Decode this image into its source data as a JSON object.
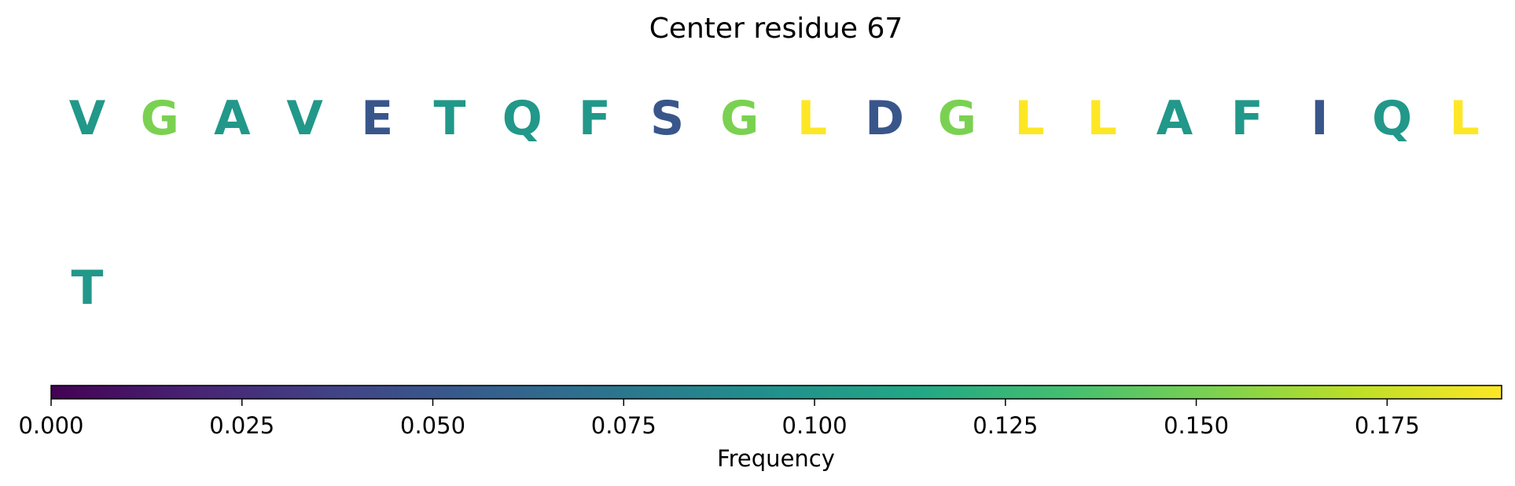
{
  "chart_data": {
    "type": "heatmap",
    "title": "Center residue 67",
    "residues": [
      {
        "letter": "V",
        "value": 0.101
      },
      {
        "letter": "G",
        "value": 0.152
      },
      {
        "letter": "A",
        "value": 0.101
      },
      {
        "letter": "V",
        "value": 0.101
      },
      {
        "letter": "E",
        "value": 0.051
      },
      {
        "letter": "T",
        "value": 0.101
      },
      {
        "letter": "Q",
        "value": 0.101
      },
      {
        "letter": "F",
        "value": 0.101
      },
      {
        "letter": "S",
        "value": 0.051
      },
      {
        "letter": "G",
        "value": 0.152
      },
      {
        "letter": "L",
        "value": 0.19
      },
      {
        "letter": "D",
        "value": 0.051
      },
      {
        "letter": "G",
        "value": 0.152
      },
      {
        "letter": "L",
        "value": 0.19
      },
      {
        "letter": "L",
        "value": 0.19
      },
      {
        "letter": "A",
        "value": 0.101
      },
      {
        "letter": "F",
        "value": 0.101
      },
      {
        "letter": "I",
        "value": 0.051
      },
      {
        "letter": "Q",
        "value": 0.101
      },
      {
        "letter": "L",
        "value": 0.19
      },
      {
        "letter": "T",
        "value": 0.101
      }
    ],
    "colorbar": {
      "label": "Frequency",
      "colormap": "viridis",
      "range": [
        0,
        0.19
      ],
      "ticks": [
        0,
        0.025,
        0.05,
        0.075,
        0.1,
        0.125,
        0.15,
        0.175
      ],
      "tick_labels": [
        "0.000",
        "0.025",
        "0.050",
        "0.075",
        "0.100",
        "0.125",
        "0.150",
        "0.175"
      ],
      "orientation": "horizontal"
    }
  }
}
